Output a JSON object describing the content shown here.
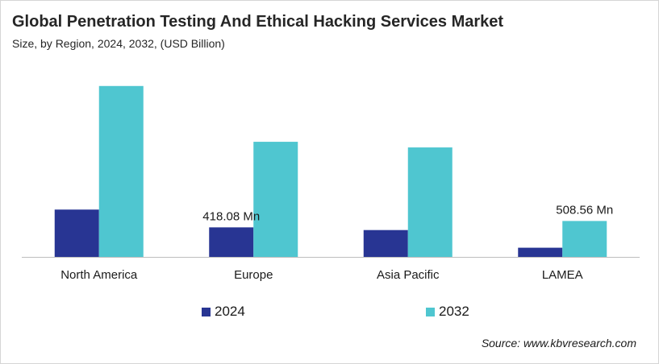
{
  "title": "Global Penetration Testing And Ethical Hacking Services Market",
  "subtitle": "Size, by Region, 2024, 2032, (USD Billion)",
  "source": "Source: www.kbvresearch.com",
  "colors": {
    "s2024": "#283593",
    "s2032": "#4fc6d0",
    "axis": "#bdbdbd"
  },
  "chart_data": {
    "type": "bar",
    "categories": [
      "North America",
      "Europe",
      "Asia Pacific",
      "LAMEA"
    ],
    "series": [
      {
        "name": "2024",
        "values": [
          670,
          418.08,
          380,
          130
        ]
      },
      {
        "name": "2032",
        "values": [
          2420,
          1630,
          1550,
          508.56
        ]
      }
    ],
    "data_labels": [
      {
        "series": 0,
        "index": 1,
        "text": "418.08 Mn"
      },
      {
        "series": 1,
        "index": 3,
        "text": "508.56 Mn"
      }
    ],
    "ylim": [
      0,
      2600
    ],
    "grid": false,
    "legend": "bottom"
  }
}
